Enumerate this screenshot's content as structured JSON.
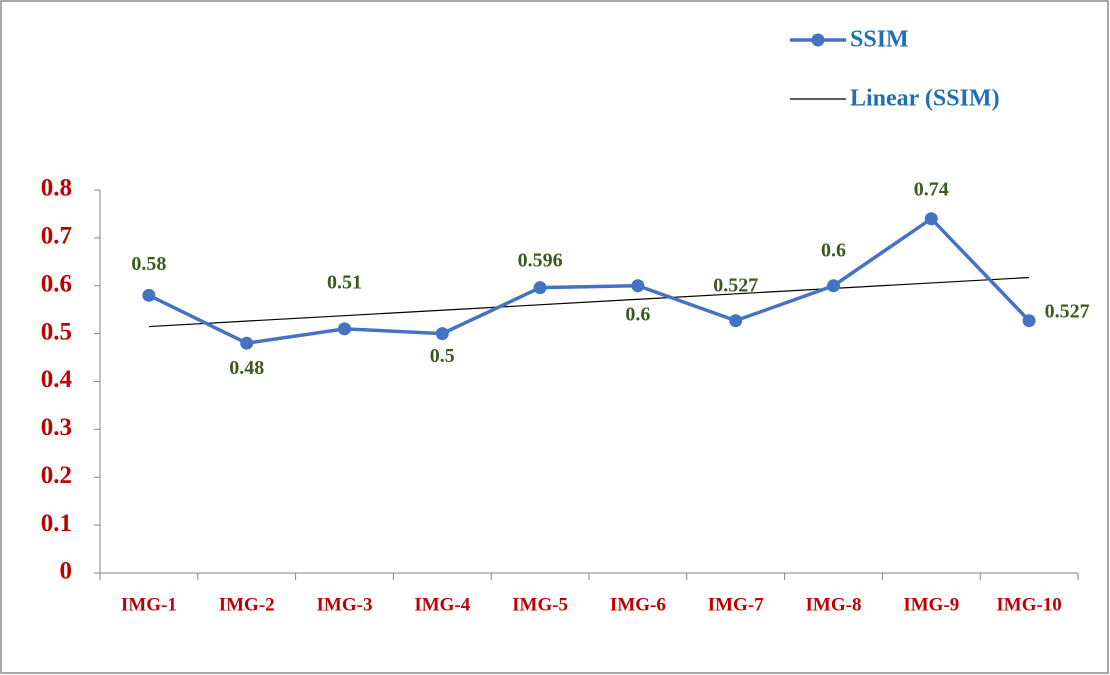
{
  "chart_data": {
    "type": "line",
    "categories": [
      "IMG-1",
      "IMG-2",
      "IMG-3",
      "IMG-4",
      "IMG-5",
      "IMG-6",
      "IMG-7",
      "IMG-8",
      "IMG-9",
      "IMG-10"
    ],
    "series": [
      {
        "name": "SSIM",
        "color": "#4472c4",
        "values": [
          0.58,
          0.48,
          0.51,
          0.5,
          0.596,
          0.6,
          0.527,
          0.6,
          0.74,
          0.527
        ]
      }
    ],
    "trendline": {
      "name": "Linear (SSIM)",
      "color": "#000000",
      "kind": "linear"
    },
    "ylim": [
      0,
      0.8
    ],
    "yticks": [
      0,
      0.1,
      0.2,
      0.3,
      0.4,
      0.5,
      0.6,
      0.7,
      0.8
    ],
    "legend": "top-right",
    "grid": false
  }
}
